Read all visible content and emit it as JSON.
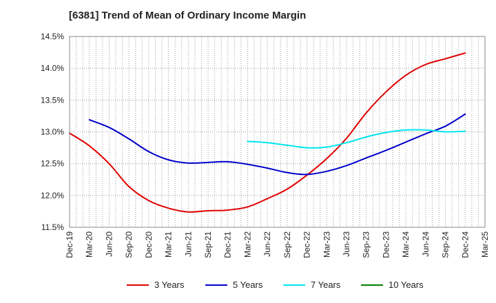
{
  "chart_data": {
    "type": "line",
    "title": "[6381]  Trend of Mean of Ordinary Income Margin",
    "xlabel": "",
    "ylabel": "",
    "x_ticks": [
      "Dec-19",
      "Mar-20",
      "Jun-20",
      "Sep-20",
      "Dec-20",
      "Mar-21",
      "Jun-21",
      "Sep-21",
      "Dec-21",
      "Mar-22",
      "Jun-22",
      "Sep-22",
      "Dec-22",
      "Mar-23",
      "Jun-23",
      "Sep-23",
      "Dec-23",
      "Mar-24",
      "Jun-24",
      "Sep-24",
      "Dec-24",
      "Mar-25"
    ],
    "y_ticks": [
      "11.5%",
      "12.0%",
      "12.5%",
      "13.0%",
      "13.5%",
      "14.0%",
      "14.5%"
    ],
    "ylim": [
      11.5,
      14.5
    ],
    "grid": true,
    "legend_position": "bottom",
    "series": [
      {
        "name": "3 Years",
        "color": "#e00000",
        "x": [
          "Dec-19",
          "Mar-20",
          "Jun-20",
          "Sep-20",
          "Dec-20",
          "Mar-21",
          "Jun-21",
          "Sep-21",
          "Dec-21",
          "Mar-22",
          "Jun-22",
          "Sep-22",
          "Dec-22",
          "Mar-23",
          "Jun-23",
          "Sep-23",
          "Dec-23",
          "Mar-24",
          "Jun-24",
          "Sep-24",
          "Dec-24"
        ],
        "values": [
          12.98,
          12.78,
          12.5,
          12.14,
          11.92,
          11.8,
          11.74,
          11.76,
          11.77,
          11.82,
          11.95,
          12.1,
          12.32,
          12.58,
          12.9,
          13.3,
          13.63,
          13.89,
          14.06,
          14.15,
          14.24
        ]
      },
      {
        "name": "5 Years",
        "color": "#0000cc",
        "x": [
          "Mar-20",
          "Jun-20",
          "Sep-20",
          "Dec-20",
          "Mar-21",
          "Jun-21",
          "Sep-21",
          "Dec-21",
          "Mar-22",
          "Jun-22",
          "Sep-22",
          "Dec-22",
          "Mar-23",
          "Jun-23",
          "Sep-23",
          "Dec-23",
          "Mar-24",
          "Jun-24",
          "Sep-24",
          "Dec-24"
        ],
        "values": [
          13.19,
          13.07,
          12.89,
          12.69,
          12.56,
          12.51,
          12.52,
          12.53,
          12.49,
          12.43,
          12.36,
          12.33,
          12.38,
          12.47,
          12.59,
          12.71,
          12.84,
          12.97,
          13.09,
          13.28
        ]
      },
      {
        "name": "7 Years",
        "color": "#00e5ee",
        "x": [
          "Mar-22",
          "Jun-22",
          "Sep-22",
          "Dec-22",
          "Mar-23",
          "Jun-23",
          "Sep-23",
          "Dec-23",
          "Mar-24",
          "Jun-24",
          "Sep-24",
          "Dec-24"
        ],
        "values": [
          12.85,
          12.83,
          12.79,
          12.75,
          12.76,
          12.83,
          12.92,
          12.99,
          13.03,
          13.03,
          13.0,
          13.01
        ]
      },
      {
        "name": "10 Years",
        "color": "#008000",
        "x": [],
        "values": []
      }
    ]
  }
}
